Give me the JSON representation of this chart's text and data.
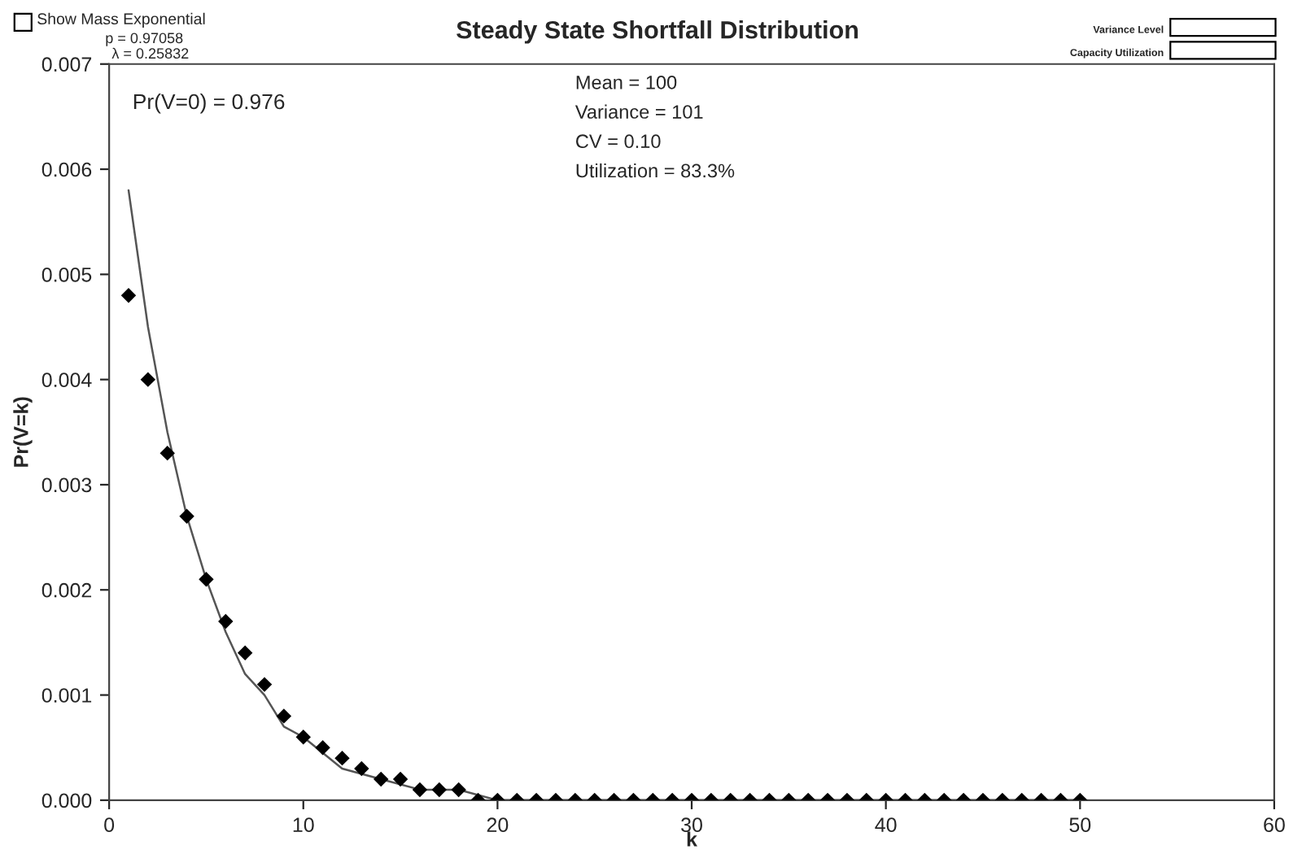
{
  "chart_data": {
    "type": "scatter",
    "title": "Steady State Shortfall Distribution",
    "xlabel": "k",
    "ylabel": "Pr(V=k)",
    "xlim": [
      0,
      60
    ],
    "xticks": [
      0,
      10,
      20,
      30,
      40,
      50,
      60
    ],
    "ylim": [
      0,
      0.007
    ],
    "yticks": [
      {
        "value": 0,
        "label": "0.000"
      },
      0.001,
      0.002,
      0.003,
      0.004,
      0.005,
      0.006,
      0.007
    ],
    "grid": false,
    "legend": false,
    "series": [
      {
        "marker": "diamond",
        "color": "#000000",
        "x": [
          1,
          2,
          3,
          4,
          5,
          6,
          7,
          8,
          9,
          10,
          11,
          12,
          13,
          14,
          15,
          16,
          17,
          18,
          19,
          20,
          21,
          22,
          23,
          24,
          25,
          26,
          27,
          28,
          29,
          30,
          31,
          32,
          33,
          34,
          35,
          36,
          37,
          38,
          39,
          40,
          41,
          42,
          43,
          44,
          45,
          46,
          47,
          48,
          49,
          50
        ],
        "values": [
          0.0048,
          0.004,
          0.0033,
          0.0027,
          0.0021,
          0.0017,
          0.0014,
          0.0011,
          0.0008,
          0.0006,
          0.0005,
          0.0004,
          0.0003,
          0.0002,
          0.0002,
          0.0001,
          0.0001,
          0.0001,
          0,
          0,
          0,
          0,
          0,
          0,
          0,
          0,
          0,
          0,
          0,
          0,
          0,
          0,
          0,
          0,
          0,
          0,
          0,
          0,
          0,
          0,
          0,
          0,
          0,
          0,
          0,
          0,
          0,
          0,
          0,
          0
        ]
      },
      {
        "type": "line",
        "color": "#555555",
        "x": [
          1,
          2,
          3,
          4,
          5,
          6,
          7,
          8,
          9,
          10,
          12,
          14,
          16,
          18,
          20,
          25,
          30,
          40,
          50
        ],
        "values": [
          0.0058,
          0.0045,
          0.0035,
          0.0027,
          0.0021,
          0.0016,
          0.0012,
          0.001,
          0.0007,
          0.0006,
          0.0003,
          0.0002,
          0.0001,
          0.0001,
          0,
          0,
          0,
          0,
          0
        ]
      }
    ],
    "annotations": [
      "Pr(V=0) = 0.976",
      "Mean = 100",
      "Variance = 101",
      "CV = 0.10",
      "Utilization = 83.3%",
      "Show Mass Exponential",
      "p = 0.97058",
      "λ = 0.25832",
      "Variance Level",
      "Capacity Utilization"
    ]
  }
}
